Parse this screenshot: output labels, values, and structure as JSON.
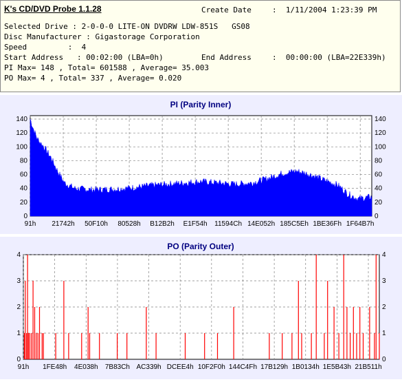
{
  "app": {
    "title": "K's CD/DVD Probe 1.1.28"
  },
  "info": {
    "create_date_label": "Create Date",
    "create_date_value": ":  1/11/2004 1:23:39 PM",
    "drive_line": "Selected Drive : 2-0-0-0 LITE-ON DVDRW LDW-851S   GS08",
    "manufacturer_line": "Disc Manufacturer : Gigastorage Corporation",
    "speed_line": "Speed         :  4",
    "start_address_line": "Start Address   : 00:02:00 (LBA=0h)",
    "end_address_label": "End Address",
    "end_address_value": ":  00:00:00 (LBA=22E339h)",
    "pi_line": "PI Max= 148 , Total= 601588 , Average= 35.003",
    "po_line": "PO Max= 4 , Total= 337 , Average= 0.020"
  },
  "colors": {
    "pi_fill": "#0000ff",
    "po_line": "#ff0000",
    "panel_bg": "#eeeeff",
    "title": "#000080"
  },
  "chart_data": [
    {
      "type": "area",
      "title": "PI (Parity Inner)",
      "yticks": [
        0,
        20,
        40,
        60,
        80,
        100,
        120,
        140
      ],
      "ylim": [
        0,
        145
      ],
      "xticks": [
        "91h",
        "21742h",
        "50F10h",
        "80528h",
        "B12B2h",
        "E1F54h",
        "11594Ch",
        "14E052h",
        "185C5Eh",
        "1BE36Fh",
        "1F64B7h"
      ],
      "series": [
        {
          "profile_x": [
            0,
            0.01,
            0.02,
            0.04,
            0.06,
            0.08,
            0.1,
            0.13,
            0.18,
            0.25,
            0.3,
            0.35,
            0.4,
            0.45,
            0.5,
            0.55,
            0.6,
            0.65,
            0.7,
            0.74,
            0.78,
            0.82,
            0.86,
            0.9,
            0.93,
            0.96,
            1.0
          ],
          "profile_y": [
            140,
            125,
            112,
            100,
            85,
            65,
            48,
            40,
            38,
            39,
            41,
            44,
            46,
            48,
            50,
            48,
            46,
            48,
            55,
            62,
            65,
            60,
            52,
            45,
            32,
            25,
            28
          ]
        }
      ],
      "grid": true
    },
    {
      "type": "bar",
      "title": "PO (Parity Outer)",
      "yticks": [
        0,
        1,
        2,
        3,
        4
      ],
      "ylim": [
        0,
        4
      ],
      "xticks": [
        "91h",
        "1FE48h",
        "4E038h",
        "7B83Ch",
        "AC339h",
        "DCEE4h",
        "10F2F0h",
        "144C4Fh",
        "17B129h",
        "1B0134h",
        "1E5B43h",
        "21B511h"
      ],
      "series": [
        {
          "spikes": [
            [
              0.003,
              1
            ],
            [
              0.006,
              3
            ],
            [
              0.01,
              1
            ],
            [
              0.013,
              4
            ],
            [
              0.016,
              1
            ],
            [
              0.02,
              1
            ],
            [
              0.025,
              1
            ],
            [
              0.03,
              3
            ],
            [
              0.035,
              2
            ],
            [
              0.04,
              1
            ],
            [
              0.045,
              1
            ],
            [
              0.05,
              2
            ],
            [
              0.058,
              1
            ],
            [
              0.062,
              1
            ],
            [
              0.1,
              1
            ],
            [
              0.125,
              3
            ],
            [
              0.14,
              1
            ],
            [
              0.18,
              1
            ],
            [
              0.2,
              2
            ],
            [
              0.205,
              1
            ],
            [
              0.235,
              1
            ],
            [
              0.29,
              1
            ],
            [
              0.32,
              1
            ],
            [
              0.38,
              2
            ],
            [
              0.41,
              1
            ],
            [
              0.5,
              1
            ],
            [
              0.56,
              1
            ],
            [
              0.6,
              1
            ],
            [
              0.65,
              2
            ],
            [
              0.76,
              1
            ],
            [
              0.8,
              1
            ],
            [
              0.83,
              1
            ],
            [
              0.85,
              3
            ],
            [
              0.86,
              1
            ],
            [
              0.89,
              1
            ],
            [
              0.905,
              4
            ],
            [
              0.93,
              1
            ],
            [
              0.94,
              3
            ],
            [
              0.96,
              2
            ],
            [
              0.975,
              1
            ],
            [
              0.99,
              4
            ],
            [
              1.0,
              2
            ],
            [
              1.01,
              1
            ],
            [
              1.02,
              2
            ],
            [
              1.03,
              1
            ],
            [
              1.04,
              2
            ],
            [
              1.05,
              1
            ],
            [
              1.07,
              2
            ],
            [
              1.085,
              1
            ],
            [
              1.09,
              4
            ],
            [
              1.1,
              1
            ]
          ],
          "x_domain": [
            0,
            1.1
          ]
        }
      ],
      "grid": true
    }
  ]
}
